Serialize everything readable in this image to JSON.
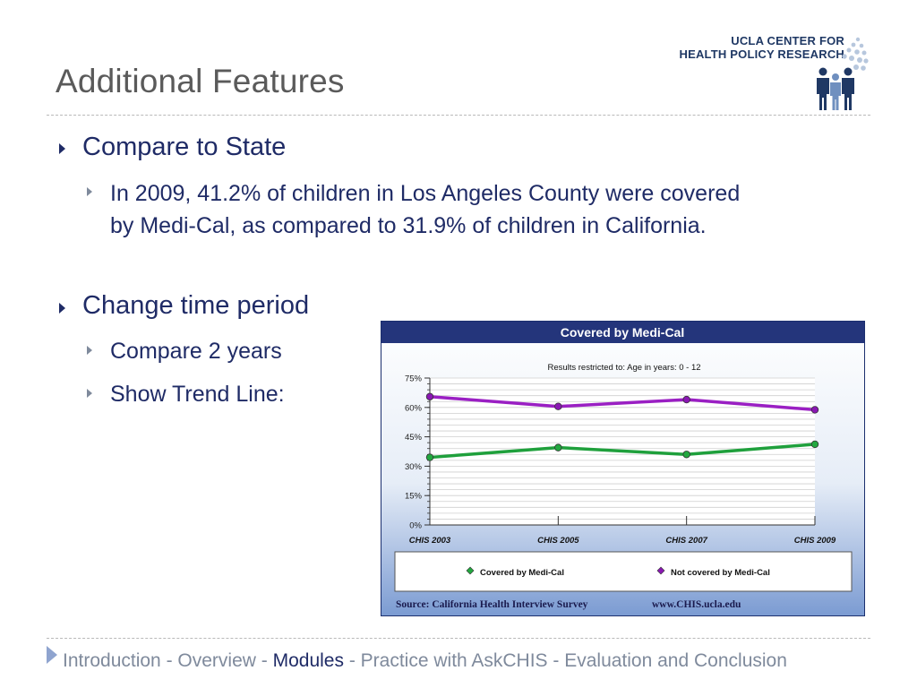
{
  "title": "Additional Features",
  "logo": {
    "line1": "UCLA CENTER FOR",
    "line2": "HEALTH POLICY RESEARCH"
  },
  "bullets": [
    {
      "text": "Compare to State",
      "sub": [
        "In 2009, 41.2% of children in Los Angeles County were covered",
        "by Medi-Cal, as compared to 31.9% of children in California."
      ]
    },
    {
      "text": "Change time period",
      "sub": [
        "Compare 2 years",
        "Show Trend Line:"
      ]
    }
  ],
  "chart_data": {
    "type": "line",
    "title": "Covered by Medi-Cal",
    "subtitle": "Results restricted to: Age in years: 0 - 12",
    "categories": [
      "CHIS 2003",
      "CHIS 2005",
      "CHIS 2007",
      "CHIS 2009"
    ],
    "ylim": [
      0,
      75
    ],
    "yticks": [
      "0%",
      "15%",
      "30%",
      "45%",
      "60%",
      "75%"
    ],
    "series": [
      {
        "name": "Covered by Medi-Cal",
        "values": [
          34.5,
          39.5,
          36.0,
          41.2
        ],
        "color": "#1fa03c",
        "marker_color": "#22a83f"
      },
      {
        "name": "Not covered by Medi-Cal",
        "values": [
          65.5,
          60.5,
          64.0,
          58.8
        ],
        "color": "#9a1fc3",
        "marker_color": "#8a17b3"
      }
    ],
    "source": "Source: California Health Interview Survey",
    "url": "www.CHIS.ucla.edu",
    "grid": true,
    "legend": "bottom"
  },
  "footer": {
    "items": [
      "Introduction ",
      "- Overview -",
      "Modules",
      "- Practice with AskCHIS - Evaluation and Conclusion"
    ]
  }
}
